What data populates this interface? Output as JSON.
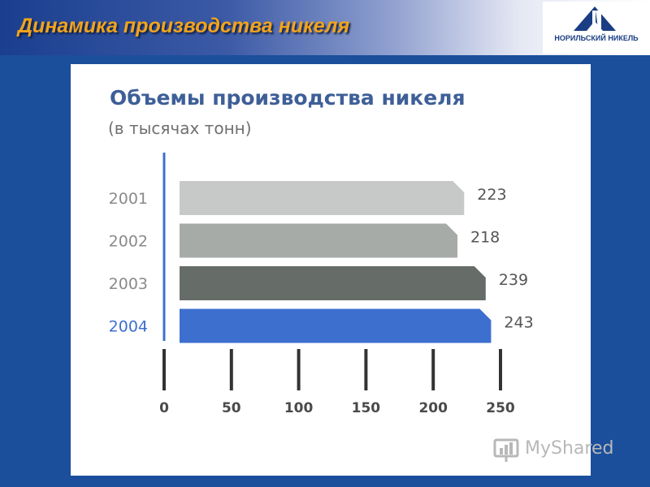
{
  "slide": {
    "title": "Динамика производства никеля",
    "logo_text": "НОРИЛЬСКИЙ НИКЕЛЬ",
    "watermark": "MyShared"
  },
  "colors": {
    "slide_background": "#1b4f9c",
    "title": "#f2a31c",
    "chart_title": "#3e5f98",
    "bar_2001": "#c7c9c8",
    "bar_2002": "#a6aba8",
    "bar_2003": "#666d69",
    "bar_2004": "#3d6fcf",
    "axis": "#3d6fcf"
  },
  "chart_data": {
    "type": "bar",
    "orientation": "horizontal",
    "title": "Объемы производства никеля",
    "subtitle": "(в тысячах тонн)",
    "categories": [
      "2001",
      "2002",
      "2003",
      "2004"
    ],
    "values": [
      223,
      218,
      239,
      243
    ],
    "value_labels": [
      "223",
      "218",
      "239",
      "243"
    ],
    "xlim": [
      0,
      250
    ],
    "xticks": [
      0,
      50,
      100,
      150,
      200,
      250
    ],
    "xtick_labels": [
      "0",
      "50",
      "100",
      "150",
      "200",
      "250"
    ],
    "highlight_category": "2004",
    "grid": false,
    "legend": "none"
  }
}
